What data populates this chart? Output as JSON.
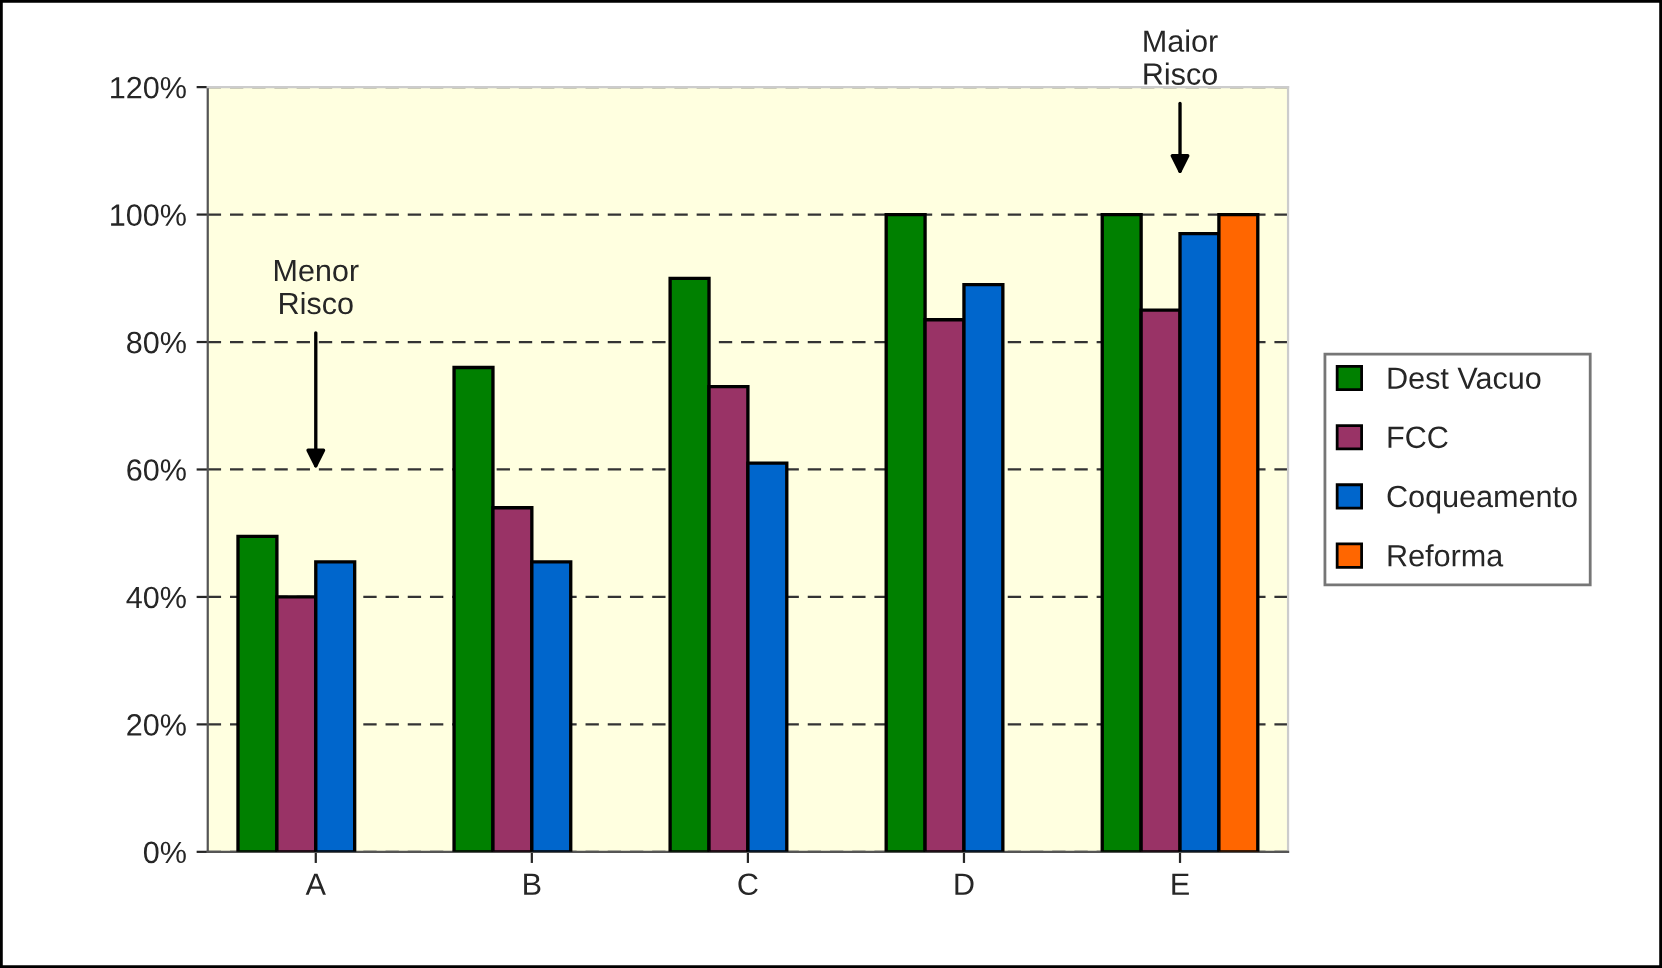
{
  "chart_data": {
    "type": "bar",
    "categories": [
      "A",
      "B",
      "C",
      "D",
      "E"
    ],
    "series": [
      {
        "name": "Dest Vacuo",
        "color": "#008000",
        "values": [
          49.5,
          76,
          90,
          100,
          100
        ]
      },
      {
        "name": "FCC",
        "color": "#993366",
        "values": [
          40,
          54,
          73,
          83.5,
          85
        ]
      },
      {
        "name": "Coqueamento",
        "color": "#0066cc",
        "values": [
          45.5,
          45.5,
          61,
          89,
          97
        ]
      },
      {
        "name": "Reforma",
        "color": "#ff6600",
        "values": [
          null,
          null,
          null,
          null,
          100
        ]
      }
    ],
    "ylim": [
      0,
      120
    ],
    "yticks": [
      {
        "value": 0,
        "label": "0%"
      },
      {
        "value": 20,
        "label": "20%"
      },
      {
        "value": 40,
        "label": "40%"
      },
      {
        "value": 60,
        "label": "60%"
      },
      {
        "value": 80,
        "label": "80%"
      },
      {
        "value": 100,
        "label": "100%"
      },
      {
        "value": 120,
        "label": "120%"
      }
    ],
    "grid": "y",
    "legend": "right",
    "annotations": [
      "Menor\nRisco",
      "Maior\nRisco"
    ]
  }
}
